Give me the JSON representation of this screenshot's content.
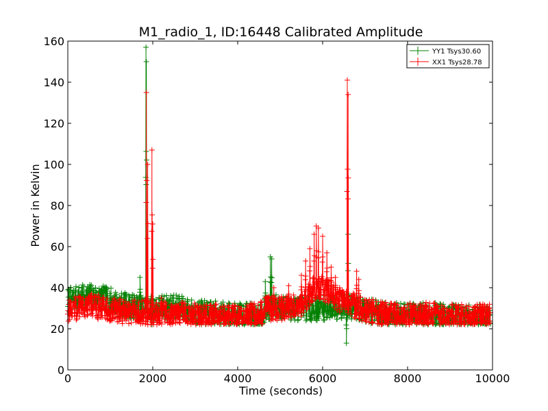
{
  "chart_data": {
    "type": "line",
    "title": "M1_radio_1, ID:16448 Calibrated Amplitude",
    "xlabel": "Time (seconds)",
    "ylabel": "Power in Kelvin",
    "xlim": [
      0,
      10000
    ],
    "ylim": [
      0,
      160
    ],
    "xticks": [
      "0",
      "2000",
      "4000",
      "6000",
      "8000",
      "10000"
    ],
    "yticks": [
      "0",
      "20",
      "40",
      "60",
      "80",
      "100",
      "120",
      "140",
      "160"
    ],
    "grid": false,
    "legend_position": "top-right",
    "marker": "+",
    "series": [
      {
        "name": "YY1 Tsys30.60",
        "color": "#008000",
        "base_profile": [
          [
            0,
            34
          ],
          [
            500,
            36
          ],
          [
            800,
            35
          ],
          [
            1000,
            34
          ],
          [
            1200,
            32
          ],
          [
            1500,
            31
          ],
          [
            2000,
            30
          ],
          [
            2500,
            31
          ],
          [
            3000,
            28
          ],
          [
            3500,
            27.5
          ],
          [
            4000,
            26.5
          ],
          [
            4500,
            27
          ],
          [
            4800,
            31
          ],
          [
            5200,
            30
          ],
          [
            6000,
            30
          ],
          [
            6500,
            31
          ],
          [
            7000,
            29
          ],
          [
            7500,
            27
          ],
          [
            8000,
            26.5
          ],
          [
            8500,
            27
          ],
          [
            9000,
            26
          ],
          [
            9500,
            26
          ],
          [
            9900,
            26
          ]
        ],
        "spikes": [
          [
            1700,
            45
          ],
          [
            1840,
            157
          ],
          [
            1850,
            150
          ],
          [
            1980,
            22
          ],
          [
            2200,
            34
          ],
          [
            4650,
            43
          ],
          [
            4770,
            55
          ],
          [
            4800,
            54
          ],
          [
            6560,
            13
          ],
          [
            6600,
            66
          ],
          [
            6800,
            35
          ]
        ]
      },
      {
        "name": "XX1 Tsys28.78",
        "color": "#ff0000",
        "base_profile": [
          [
            0,
            29
          ],
          [
            300,
            31
          ],
          [
            500,
            32
          ],
          [
            800,
            30
          ],
          [
            1000,
            29
          ],
          [
            1500,
            28
          ],
          [
            2000,
            28
          ],
          [
            2500,
            27
          ],
          [
            3000,
            26.5
          ],
          [
            3500,
            26
          ],
          [
            4000,
            26
          ],
          [
            4500,
            26.5
          ],
          [
            4700,
            30
          ],
          [
            5000,
            30
          ],
          [
            5500,
            32
          ],
          [
            5800,
            40
          ],
          [
            6000,
            40
          ],
          [
            6400,
            34
          ],
          [
            6800,
            31
          ],
          [
            7000,
            29
          ],
          [
            7500,
            27
          ],
          [
            8000,
            26.5
          ],
          [
            8500,
            27
          ],
          [
            9000,
            26
          ],
          [
            9500,
            26
          ],
          [
            9900,
            26
          ]
        ],
        "spikes": [
          [
            1850,
            135
          ],
          [
            1880,
            100
          ],
          [
            1980,
            107
          ],
          [
            2000,
            71
          ],
          [
            2200,
            35
          ],
          [
            4850,
            40
          ],
          [
            5200,
            41
          ],
          [
            5500,
            46
          ],
          [
            5600,
            53
          ],
          [
            5700,
            59
          ],
          [
            5800,
            66
          ],
          [
            5850,
            70
          ],
          [
            5900,
            69
          ],
          [
            6000,
            65
          ],
          [
            6100,
            57
          ],
          [
            6200,
            50
          ],
          [
            6300,
            45
          ],
          [
            6400,
            40
          ],
          [
            6580,
            141
          ],
          [
            6600,
            134
          ],
          [
            6800,
            48
          ],
          [
            6850,
            44
          ],
          [
            8450,
            31
          ],
          [
            9600,
            31
          ]
        ]
      }
    ]
  }
}
